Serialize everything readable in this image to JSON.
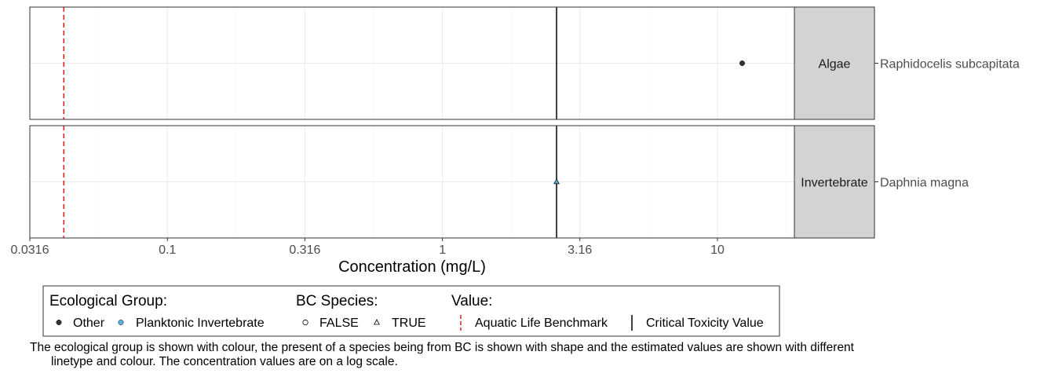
{
  "chart_data": {
    "type": "scatter",
    "scale": "log10",
    "xlabel": "Concentration (mg/L)",
    "xlim": [
      0.0316,
      31.6
    ],
    "x_ticks": [
      {
        "value": 0.0316,
        "label": "0.0316"
      },
      {
        "value": 0.1,
        "label": "0.1"
      },
      {
        "value": 0.316,
        "label": "0.316"
      },
      {
        "value": 1,
        "label": "1"
      },
      {
        "value": 3.16,
        "label": "3.16"
      },
      {
        "value": 10,
        "label": "10"
      }
    ],
    "grid": true,
    "reference_lines": {
      "aquatic_life_benchmark": 0.042,
      "critical_toxicity_value": 2.6
    },
    "panels": [
      {
        "group": "Algae",
        "species": "Raphidocelis subcapitata",
        "points": [
          {
            "x": 12.3,
            "ecological_group": "Other",
            "bc_species": "FALSE"
          }
        ]
      },
      {
        "group": "Invertebrate",
        "species": "Daphnia magna",
        "points": [
          {
            "x": 2.6,
            "ecological_group": "Planktonic Invertebrate",
            "bc_species": "TRUE"
          }
        ]
      }
    ],
    "legend": {
      "placement": "bottom",
      "ecological_group": {
        "title": "Ecological Group:",
        "items": [
          "Other",
          "Planktonic Invertebrate"
        ]
      },
      "bc_species": {
        "title": "BC Species:",
        "items": [
          "FALSE",
          "TRUE"
        ]
      },
      "value": {
        "title": "Value:",
        "items": [
          "Aquatic Life Benchmark",
          "Critical Toxicity Value"
        ]
      }
    }
  },
  "colors": {
    "other": "#333333",
    "planktonic_invertebrate": "#56B4E9",
    "benchmark": "#E41A1C",
    "ctv": "#000000",
    "strip": "#D3D3D3",
    "grid_major": "#EBEBEB",
    "grid_minor": "#F5F5F5"
  },
  "caption": {
    "line1": "The ecological group is shown with colour, the present of a species being from BC is shown with shape and the estimated values are shown with different",
    "line2": "linetype and colour. The concentration values are on a log scale."
  }
}
